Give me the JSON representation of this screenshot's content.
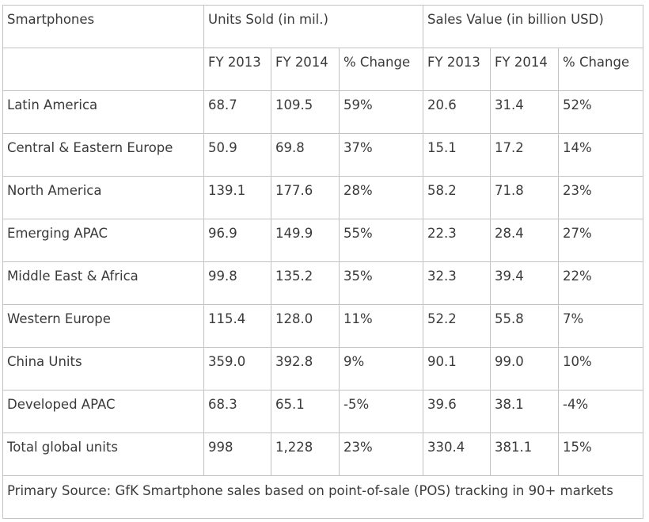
{
  "chart_data": {
    "type": "table",
    "header": {
      "corner": "Smartphones",
      "group_units": "Units Sold (in mil.)",
      "group_sales": "Sales Value (in billion USD)"
    },
    "subheaders": [
      "FY 2013",
      "FY 2014",
      "% Change",
      "FY 2013",
      "FY 2014",
      "% Change"
    ],
    "rows": [
      [
        "Latin America",
        "68.7",
        "109.5",
        "59%",
        "20.6",
        "31.4",
        "52%"
      ],
      [
        "Central & Eastern Europe",
        "50.9",
        "69.8",
        "37%",
        "15.1",
        "17.2",
        "14%"
      ],
      [
        "North America",
        "139.1",
        "177.6",
        "28%",
        "58.2",
        "71.8",
        "23%"
      ],
      [
        "Emerging APAC",
        "96.9",
        "149.9",
        "55%",
        "22.3",
        "28.4",
        "27%"
      ],
      [
        "Middle East & Africa",
        "99.8",
        "135.2",
        "35%",
        "32.3",
        "39.4",
        "22%"
      ],
      [
        "Western Europe",
        "115.4",
        "128.0",
        "11%",
        "52.2",
        "55.8",
        "7%"
      ],
      [
        "China Units",
        "359.0",
        "392.8",
        "9%",
        "90.1",
        "99.0",
        "10%"
      ],
      [
        "Developed APAC",
        "68.3",
        "65.1",
        "-5%",
        "39.6",
        "38.1",
        "-4%"
      ],
      [
        "Total global units",
        "998",
        "1,228",
        "23%",
        "330.4",
        "381.1",
        "15%"
      ]
    ],
    "source": "Primary Source: GfK Smartphone sales based on point-of-sale (POS) tracking in 90+ markets"
  },
  "colors": {
    "text": "#3a3a3a",
    "border": "#c3c3c3",
    "background": "#ffffff"
  }
}
